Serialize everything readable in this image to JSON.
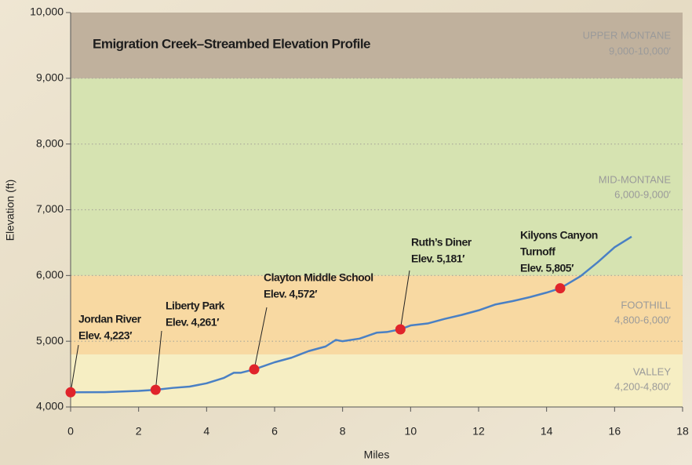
{
  "chart_data": {
    "type": "line",
    "title": "Emigration Creek–Streambed Elevation Profile",
    "x_label": "Miles",
    "y_label": "Elevation (ft)",
    "xlim": [
      0,
      18
    ],
    "ylim": [
      4000,
      10000
    ],
    "xticks": [
      0,
      2,
      4,
      6,
      8,
      10,
      12,
      14,
      16,
      18
    ],
    "yticks": [
      {
        "value": 4000,
        "label": "4,000"
      },
      {
        "value": 5000,
        "label": "5,000"
      },
      {
        "value": 6000,
        "label": "6,000"
      },
      {
        "value": 7000,
        "label": "7,000"
      },
      {
        "value": 8000,
        "label": "8,000"
      },
      {
        "value": 9000,
        "label": "9,000"
      },
      {
        "value": 10000,
        "label": "10,000"
      }
    ],
    "grid": true,
    "bands": [
      {
        "name": "VALLEY",
        "range": "4,200-4,800′",
        "upper": 4800,
        "color": "#f6eec3"
      },
      {
        "name": "FOOTHILL",
        "range": "4,800-6,000′",
        "upper": 6000,
        "color": "#f8d9a2"
      },
      {
        "name": "MID-MONTANE",
        "range": "6,000-9,000′",
        "upper": 9000,
        "color": "#d6e3b1"
      },
      {
        "name": "UPPER MONTANE",
        "range": "9,000-10,000′",
        "upper": 10000,
        "color": "#c0b19d"
      }
    ],
    "series": [
      {
        "color": "#4a80c4",
        "x": [
          0,
          1,
          2,
          2.5,
          3,
          3.5,
          4,
          4.5,
          4.8,
          5,
          5.4,
          6,
          6.5,
          7,
          7.5,
          7.8,
          8,
          8.5,
          9,
          9.3,
          9.7,
          10,
          10.5,
          11,
          11.5,
          12,
          12.5,
          13,
          13.5,
          14,
          14.4,
          15,
          15.5,
          16,
          16.5
        ],
        "values": [
          4223,
          4225,
          4245,
          4261,
          4290,
          4310,
          4360,
          4440,
          4520,
          4520,
          4572,
          4680,
          4750,
          4850,
          4920,
          5020,
          5000,
          5040,
          5130,
          5140,
          5181,
          5240,
          5270,
          5340,
          5400,
          5470,
          5560,
          5610,
          5670,
          5740,
          5805,
          5990,
          6200,
          6430,
          6590
        ]
      }
    ],
    "points": [
      {
        "name": [
          "Jordan River"
        ],
        "x": 0,
        "value": 4223,
        "value_label": "Elev. 4,223′"
      },
      {
        "name": [
          "Liberty Park"
        ],
        "x": 2.5,
        "value": 4261,
        "value_label": "Elev. 4,261′"
      },
      {
        "name": [
          "Clayton Middle School"
        ],
        "x": 5.4,
        "value": 4572,
        "value_label": "Elev. 4,572′"
      },
      {
        "name": [
          "Ruth’s Diner"
        ],
        "x": 9.7,
        "value": 5181,
        "value_label": "Elev. 5,181′"
      },
      {
        "name": [
          "Kilyons Canyon",
          "Turnoff"
        ],
        "x": 14.4,
        "value": 5805,
        "value_label": "Elev. 5,805′"
      }
    ],
    "marker_color": "#e0242b"
  }
}
